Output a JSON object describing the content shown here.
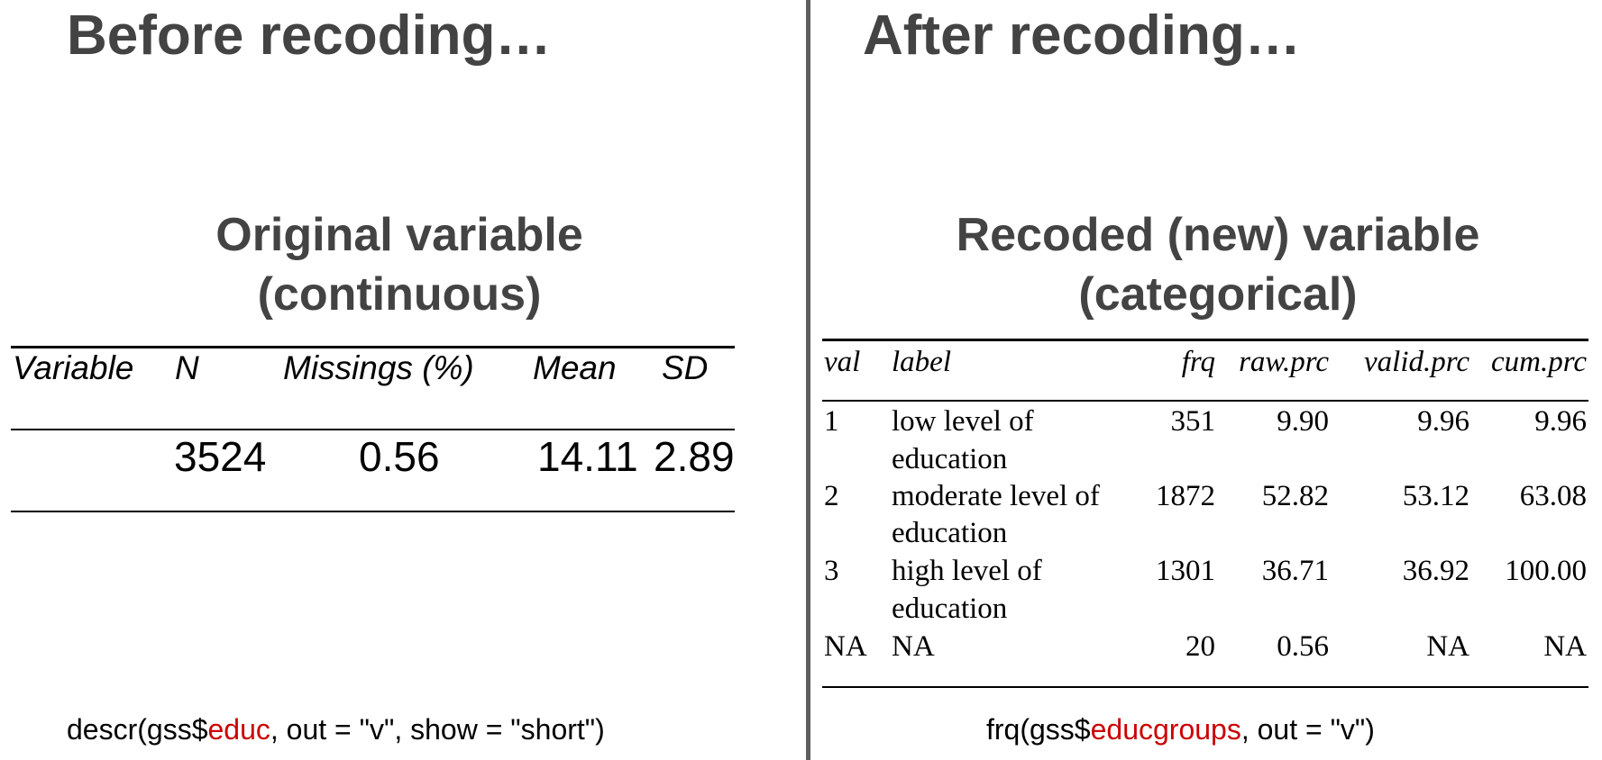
{
  "left": {
    "heading": "Before recoding…",
    "subtitle_line1": "Original variable",
    "subtitle_line2": "(continuous)",
    "table": {
      "headers": [
        "Variable",
        "N",
        "Missings (%)",
        "Mean",
        "SD"
      ],
      "row": [
        "",
        "3524",
        "0.56",
        "14.11",
        "2.89"
      ]
    },
    "code": {
      "prefix": "descr(gss$",
      "variable": "educ",
      "suffix": ", out = \"v\", show = \"short\")"
    }
  },
  "right": {
    "heading": "After recoding…",
    "subtitle_line1": "Recoded (new) variable",
    "subtitle_line2": "(categorical)",
    "table": {
      "headers": [
        "val",
        "label",
        "frq",
        "raw.prc",
        "valid.prc",
        "cum.prc"
      ],
      "rows": [
        {
          "val": "1",
          "label_line1": "low level of",
          "label_line2": "education",
          "frq": "351",
          "raw_prc": "9.90",
          "valid_prc": "9.96",
          "cum_prc": "9.96"
        },
        {
          "val": "2",
          "label_line1": "moderate level of",
          "label_line2": "education",
          "frq": "1872",
          "raw_prc": "52.82",
          "valid_prc": "53.12",
          "cum_prc": "63.08"
        },
        {
          "val": "3",
          "label_line1": "high level of",
          "label_line2": "education",
          "frq": "1301",
          "raw_prc": "36.71",
          "valid_prc": "36.92",
          "cum_prc": "100.00"
        },
        {
          "val": "NA",
          "label_line1": "NA",
          "label_line2": "",
          "frq": "20",
          "raw_prc": "0.56",
          "valid_prc": "NA",
          "cum_prc": "NA"
        }
      ]
    },
    "code": {
      "prefix": "frq(gss$",
      "variable": "educgroups",
      "suffix": ", out = \"v\")"
    }
  },
  "colors": {
    "heading": "#434343",
    "divider": "#5f5f5f",
    "code_variable": "#cc0000"
  }
}
